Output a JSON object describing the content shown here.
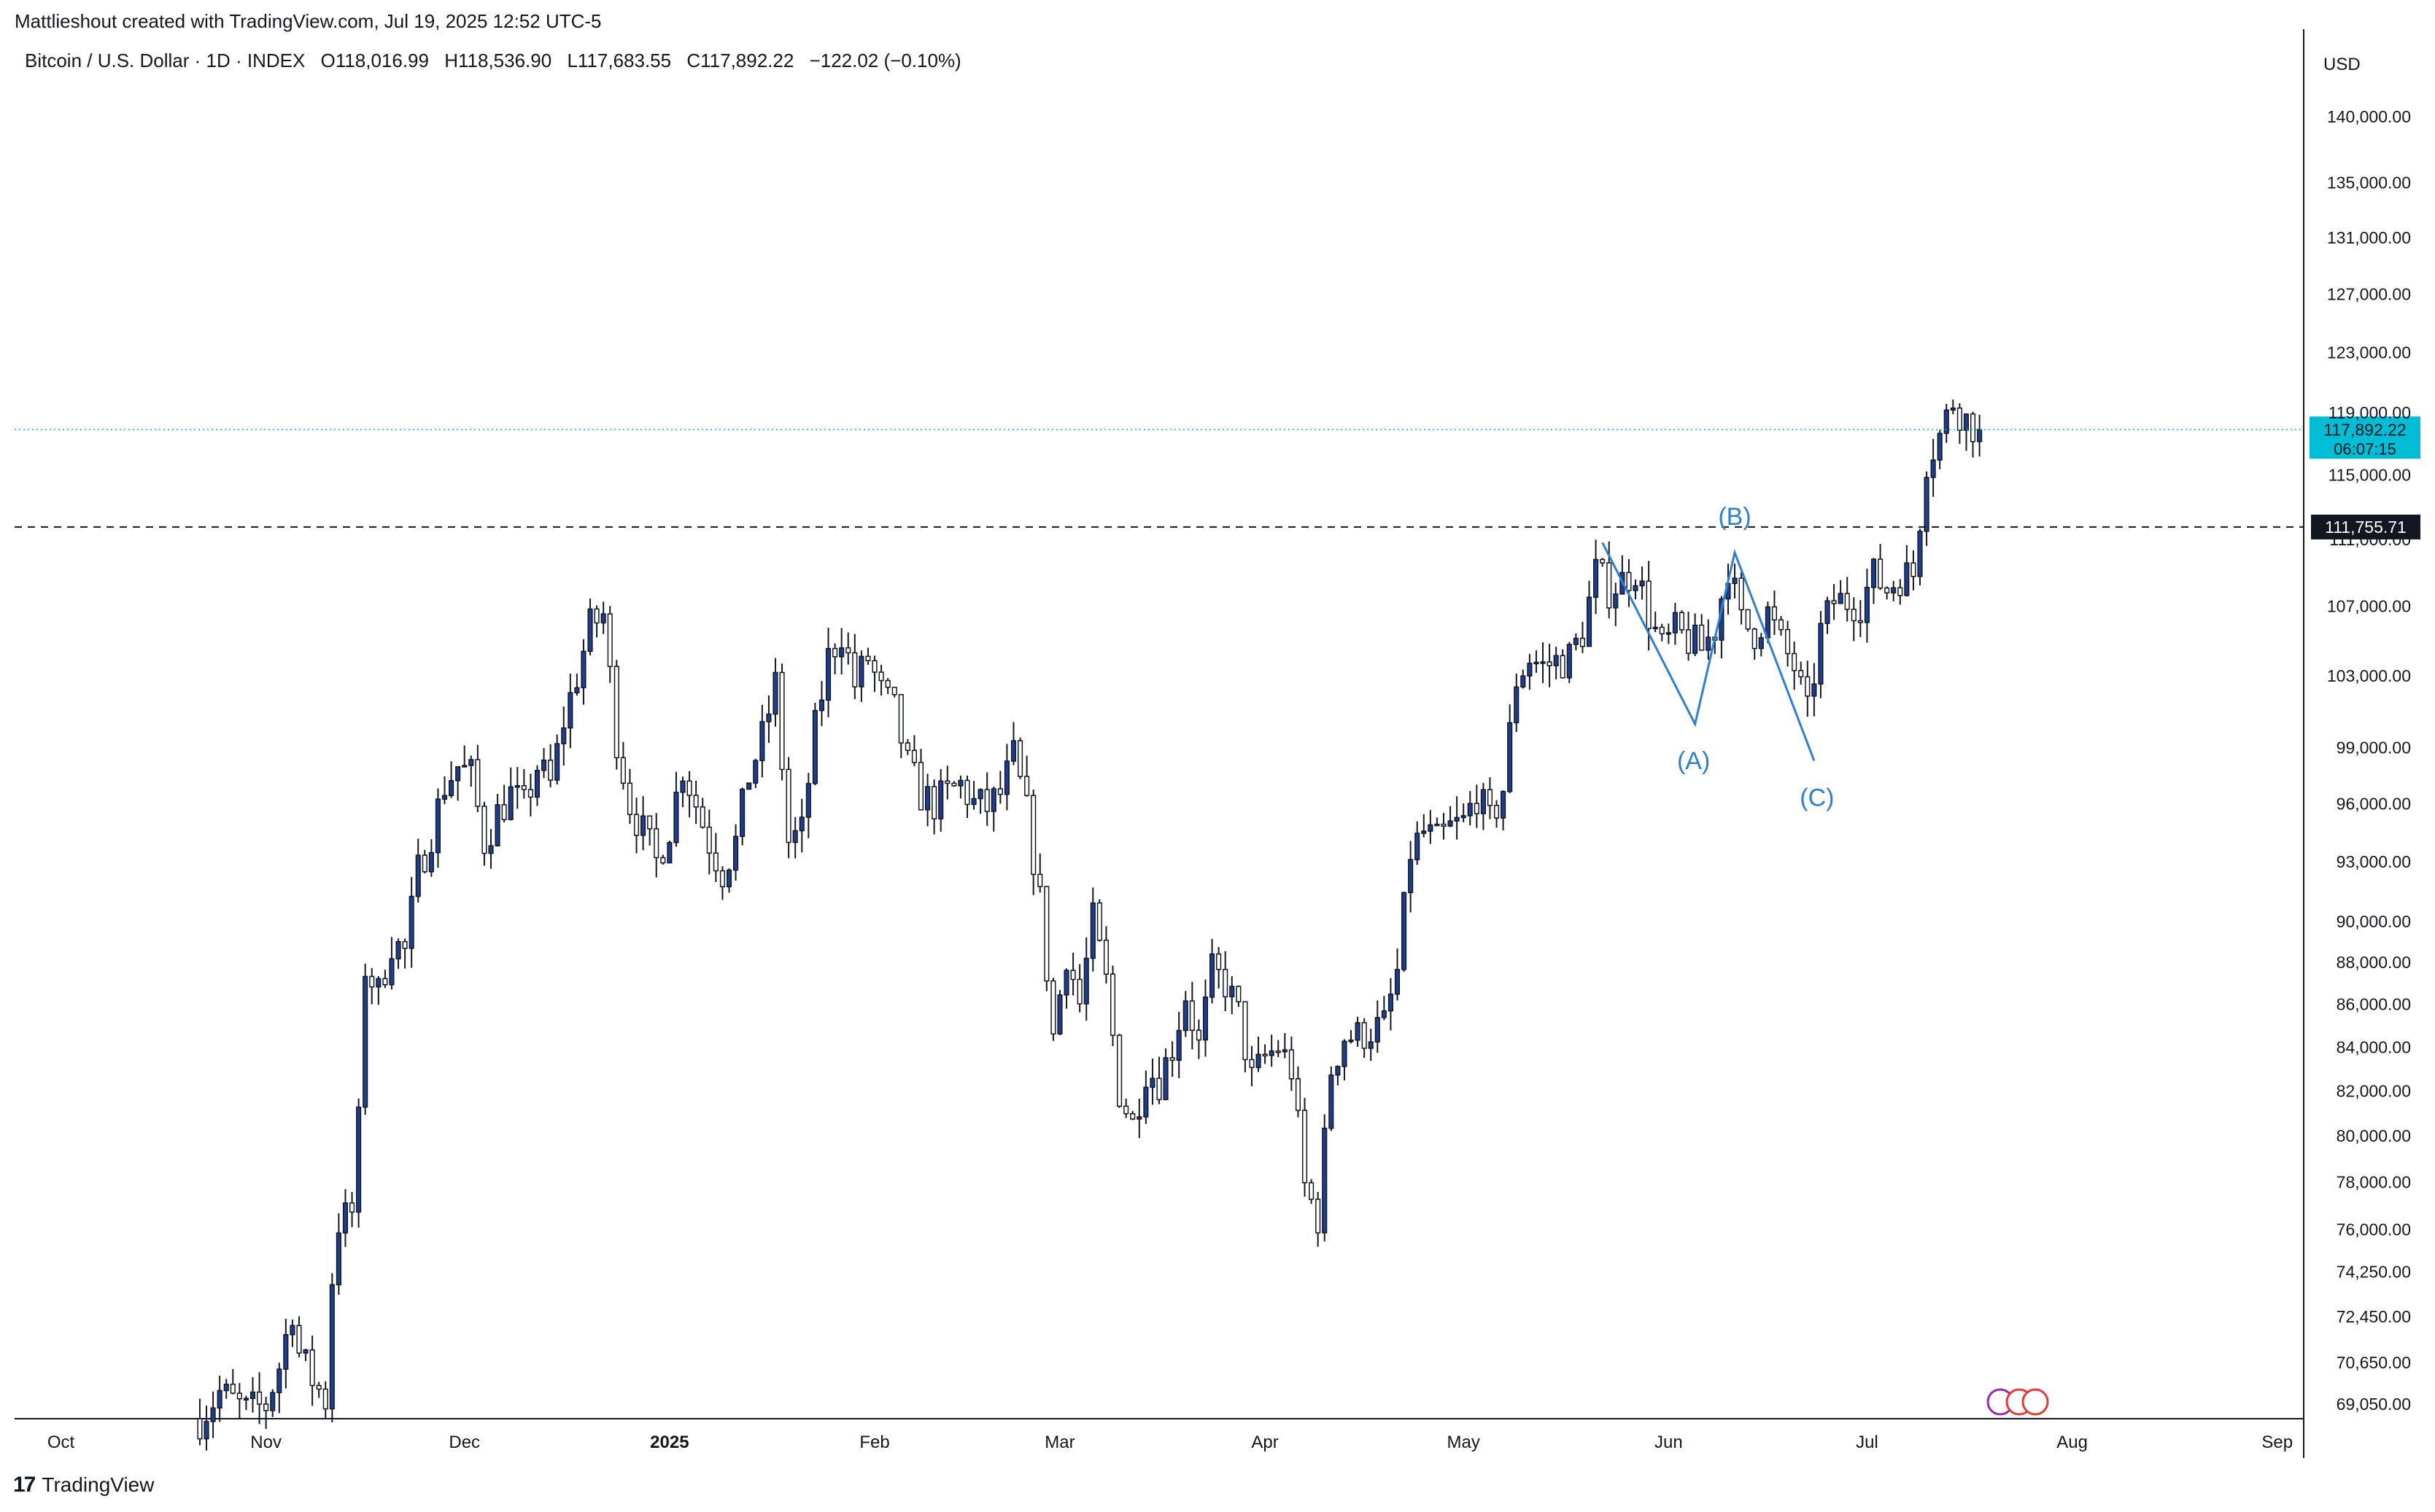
{
  "caption": "Mattlieshout created with TradingView.com, Jul 19, 2025 12:52 UTC-5",
  "symbol": {
    "name": "Bitcoin / U.S. Dollar · 1D · INDEX",
    "o_label": "O",
    "o": "118,016.99",
    "h_label": "H",
    "h": "118,536.90",
    "l_label": "L",
    "l": "117,683.55",
    "c_label": "C",
    "c": "117,892.22",
    "change": "−122.02 (−0.10%)"
  },
  "brand": {
    "name": "TradingView",
    "logo_icon": "tradingview-logo-icon"
  },
  "colors": {
    "up": "#2962ff",
    "up_fill": "#1e3f8f",
    "down": "#ffffff",
    "wick": "#131722",
    "last_price_bg": "#00bcd4",
    "wave": "#2f7fd0",
    "level": "#131722"
  },
  "chart_data": {
    "type": "candlestick",
    "currency": "USD",
    "y_scale": "log",
    "ylim": [
      68500,
      146000
    ],
    "y_ticks": [
      {
        "value": 140000,
        "label": "140,000.00"
      },
      {
        "value": 135000,
        "label": "135,000.00"
      },
      {
        "value": 131000,
        "label": "131,000.00"
      },
      {
        "value": 127000,
        "label": "127,000.00"
      },
      {
        "value": 123000,
        "label": "123,000.00"
      },
      {
        "value": 119000,
        "label": "119,000.00"
      },
      {
        "value": 115000,
        "label": "115,000.00"
      },
      {
        "value": 111000,
        "label": "111,000.00"
      },
      {
        "value": 107000,
        "label": "107,000.00"
      },
      {
        "value": 103000,
        "label": "103,000.00"
      },
      {
        "value": 99000,
        "label": "99,000.00"
      },
      {
        "value": 96000,
        "label": "96,000.00"
      },
      {
        "value": 93000,
        "label": "93,000.00"
      },
      {
        "value": 90000,
        "label": "90,000.00"
      },
      {
        "value": 88000,
        "label": "88,000.00"
      },
      {
        "value": 86000,
        "label": "86,000.00"
      },
      {
        "value": 84000,
        "label": "84,000.00"
      },
      {
        "value": 82000,
        "label": "82,000.00"
      },
      {
        "value": 80000,
        "label": "80,000.00"
      },
      {
        "value": 78000,
        "label": "78,000.00"
      },
      {
        "value": 76000,
        "label": "76,000.00"
      },
      {
        "value": 74250,
        "label": "74,250.00"
      },
      {
        "value": 72450,
        "label": "72,450.00"
      },
      {
        "value": 70650,
        "label": "70,650.00"
      },
      {
        "value": 69050,
        "label": "69,050.00"
      }
    ],
    "x_labels": [
      {
        "date": "2024-10-01",
        "label": "Oct",
        "bold": false
      },
      {
        "date": "2024-11-01",
        "label": "Nov",
        "bold": false
      },
      {
        "date": "2024-12-01",
        "label": "Dec",
        "bold": false
      },
      {
        "date": "2025-01-01",
        "label": "2025",
        "bold": true
      },
      {
        "date": "2025-02-01",
        "label": "Feb",
        "bold": false
      },
      {
        "date": "2025-03-01",
        "label": "Mar",
        "bold": false
      },
      {
        "date": "2025-04-01",
        "label": "Apr",
        "bold": false
      },
      {
        "date": "2025-05-01",
        "label": "May",
        "bold": false
      },
      {
        "date": "2025-06-01",
        "label": "Jun",
        "bold": false
      },
      {
        "date": "2025-07-01",
        "label": "Jul",
        "bold": false
      },
      {
        "date": "2025-08-01",
        "label": "Aug",
        "bold": false
      },
      {
        "date": "2025-09-01",
        "label": "Sep",
        "bold": false
      }
    ],
    "x_range": [
      "2024-09-24",
      "2025-09-05"
    ],
    "price_path": [
      [
        "2024-10-22",
        68500
      ],
      [
        "2024-10-25",
        69500
      ],
      [
        "2024-10-29",
        68800
      ],
      [
        "2024-11-01",
        69000
      ],
      [
        "2024-11-03",
        70500
      ],
      [
        "2024-11-05",
        72800
      ],
      [
        "2024-11-06",
        71000
      ],
      [
        "2024-11-08",
        70000
      ],
      [
        "2024-11-10",
        69200
      ],
      [
        "2024-11-11",
        74000
      ],
      [
        "2024-11-12",
        76300
      ],
      [
        "2024-11-14",
        76700
      ],
      [
        "2024-11-15",
        80500
      ],
      [
        "2024-11-16",
        87800
      ],
      [
        "2024-11-18",
        86500
      ],
      [
        "2024-11-20",
        89000
      ],
      [
        "2024-11-22",
        88500
      ],
      [
        "2024-11-24",
        92500
      ],
      [
        "2024-11-26",
        94500
      ],
      [
        "2024-11-28",
        97000
      ],
      [
        "2024-11-30",
        98000
      ],
      [
        "2024-12-02",
        97500
      ],
      [
        "2024-12-04",
        94000
      ],
      [
        "2024-12-06",
        95500
      ],
      [
        "2024-12-08",
        96500
      ],
      [
        "2024-12-10",
        95800
      ],
      [
        "2024-12-12",
        98000
      ],
      [
        "2024-12-14",
        97000
      ],
      [
        "2024-12-16",
        100500
      ],
      [
        "2024-12-18",
        103000
      ],
      [
        "2024-12-20",
        105800
      ],
      [
        "2024-12-22",
        106500
      ],
      [
        "2024-12-24",
        99500
      ],
      [
        "2024-12-26",
        96000
      ],
      [
        "2024-12-28",
        94500
      ],
      [
        "2024-12-30",
        93000
      ],
      [
        "2025-01-01",
        94800
      ],
      [
        "2025-01-03",
        98000
      ],
      [
        "2025-01-05",
        96000
      ],
      [
        "2025-01-07",
        94000
      ],
      [
        "2025-01-09",
        92500
      ],
      [
        "2025-01-11",
        94000
      ],
      [
        "2025-01-13",
        97500
      ],
      [
        "2025-01-15",
        99500
      ],
      [
        "2025-01-17",
        102500
      ],
      [
        "2025-01-19",
        94000
      ],
      [
        "2025-01-21",
        94500
      ],
      [
        "2025-01-23",
        100000
      ],
      [
        "2025-01-25",
        104000
      ],
      [
        "2025-01-27",
        105500
      ],
      [
        "2025-01-29",
        102500
      ],
      [
        "2025-01-31",
        104000
      ],
      [
        "2025-02-02",
        102000
      ],
      [
        "2025-02-04",
        101000
      ],
      [
        "2025-02-06",
        98000
      ],
      [
        "2025-02-08",
        96500
      ],
      [
        "2025-02-10",
        96000
      ],
      [
        "2025-02-12",
        96500
      ],
      [
        "2025-02-14",
        97000
      ],
      [
        "2025-02-16",
        96000
      ],
      [
        "2025-02-18",
        95800
      ],
      [
        "2025-02-20",
        96500
      ],
      [
        "2025-02-22",
        98500
      ],
      [
        "2025-02-24",
        95500
      ],
      [
        "2025-02-26",
        91000
      ],
      [
        "2025-02-28",
        84500
      ],
      [
        "2025-03-02",
        88500
      ],
      [
        "2025-03-04",
        86000
      ],
      [
        "2025-03-06",
        90000
      ],
      [
        "2025-03-08",
        87000
      ],
      [
        "2025-03-10",
        82000
      ],
      [
        "2025-03-12",
        80500
      ],
      [
        "2025-03-14",
        83000
      ],
      [
        "2025-03-16",
        82500
      ],
      [
        "2025-03-18",
        84000
      ],
      [
        "2025-03-20",
        86500
      ],
      [
        "2025-03-22",
        84000
      ],
      [
        "2025-03-24",
        87500
      ],
      [
        "2025-03-26",
        87000
      ],
      [
        "2025-03-28",
        85500
      ],
      [
        "2025-03-30",
        82500
      ],
      [
        "2025-04-01",
        83500
      ],
      [
        "2025-04-03",
        84000
      ],
      [
        "2025-04-05",
        83000
      ],
      [
        "2025-04-07",
        77800
      ],
      [
        "2025-04-09",
        76500
      ],
      [
        "2025-04-11",
        83000
      ],
      [
        "2025-04-13",
        84500
      ],
      [
        "2025-04-15",
        84500
      ],
      [
        "2025-04-17",
        84800
      ],
      [
        "2025-04-19",
        85000
      ],
      [
        "2025-04-21",
        87500
      ],
      [
        "2025-04-23",
        93500
      ],
      [
        "2025-04-25",
        94500
      ],
      [
        "2025-04-27",
        94000
      ],
      [
        "2025-04-29",
        94700
      ],
      [
        "2025-05-01",
        95000
      ],
      [
        "2025-05-03",
        96500
      ],
      [
        "2025-05-05",
        95000
      ],
      [
        "2025-05-07",
        96800
      ],
      [
        "2025-05-09",
        102800
      ],
      [
        "2025-05-11",
        104000
      ],
      [
        "2025-05-13",
        103500
      ],
      [
        "2025-05-15",
        103800
      ],
      [
        "2025-05-17",
        104000
      ],
      [
        "2025-05-19",
        105500
      ],
      [
        "2025-05-21",
        109000
      ],
      [
        "2025-05-23",
        108000
      ],
      [
        "2025-05-25",
        108500
      ],
      [
        "2025-05-27",
        109200
      ],
      [
        "2025-05-29",
        106500
      ],
      [
        "2025-05-31",
        104500
      ],
      [
        "2025-06-02",
        105500
      ],
      [
        "2025-06-04",
        105000
      ],
      [
        "2025-06-06",
        104500
      ],
      [
        "2025-06-08",
        105700
      ],
      [
        "2025-06-10",
        109500
      ],
      [
        "2025-06-12",
        106000
      ],
      [
        "2025-06-14",
        105500
      ],
      [
        "2025-06-16",
        106600
      ],
      [
        "2025-06-18",
        104800
      ],
      [
        "2025-06-20",
        103500
      ],
      [
        "2025-06-22",
        100800
      ],
      [
        "2025-06-24",
        105500
      ],
      [
        "2025-06-26",
        107300
      ],
      [
        "2025-06-28",
        107300
      ],
      [
        "2025-06-30",
        107200
      ],
      [
        "2025-07-02",
        108800
      ],
      [
        "2025-07-04",
        108000
      ],
      [
        "2025-07-06",
        108800
      ],
      [
        "2025-07-08",
        108900
      ],
      [
        "2025-07-10",
        116000
      ],
      [
        "2025-07-12",
        117500
      ],
      [
        "2025-07-14",
        119800
      ],
      [
        "2025-07-16",
        118500
      ],
      [
        "2025-07-18",
        117892.22
      ]
    ],
    "last_price": {
      "value": 117892.22,
      "label": "117,892.22",
      "countdown": "06:07:15"
    },
    "horizontal_level": {
      "value": 111755.71,
      "label": "111,755.71"
    },
    "abc_correction": [
      {
        "date": "2025-05-22",
        "value": 110800,
        "label": ""
      },
      {
        "date": "2025-06-05",
        "value": 100300,
        "label": "(A)"
      },
      {
        "date": "2025-06-11",
        "value": 110200,
        "label": "(B)"
      },
      {
        "date": "2025-06-23",
        "value": 98300,
        "label": "(C)"
      }
    ],
    "grid": false,
    "legend": "none",
    "event_icons_date": "2025-07-24"
  }
}
